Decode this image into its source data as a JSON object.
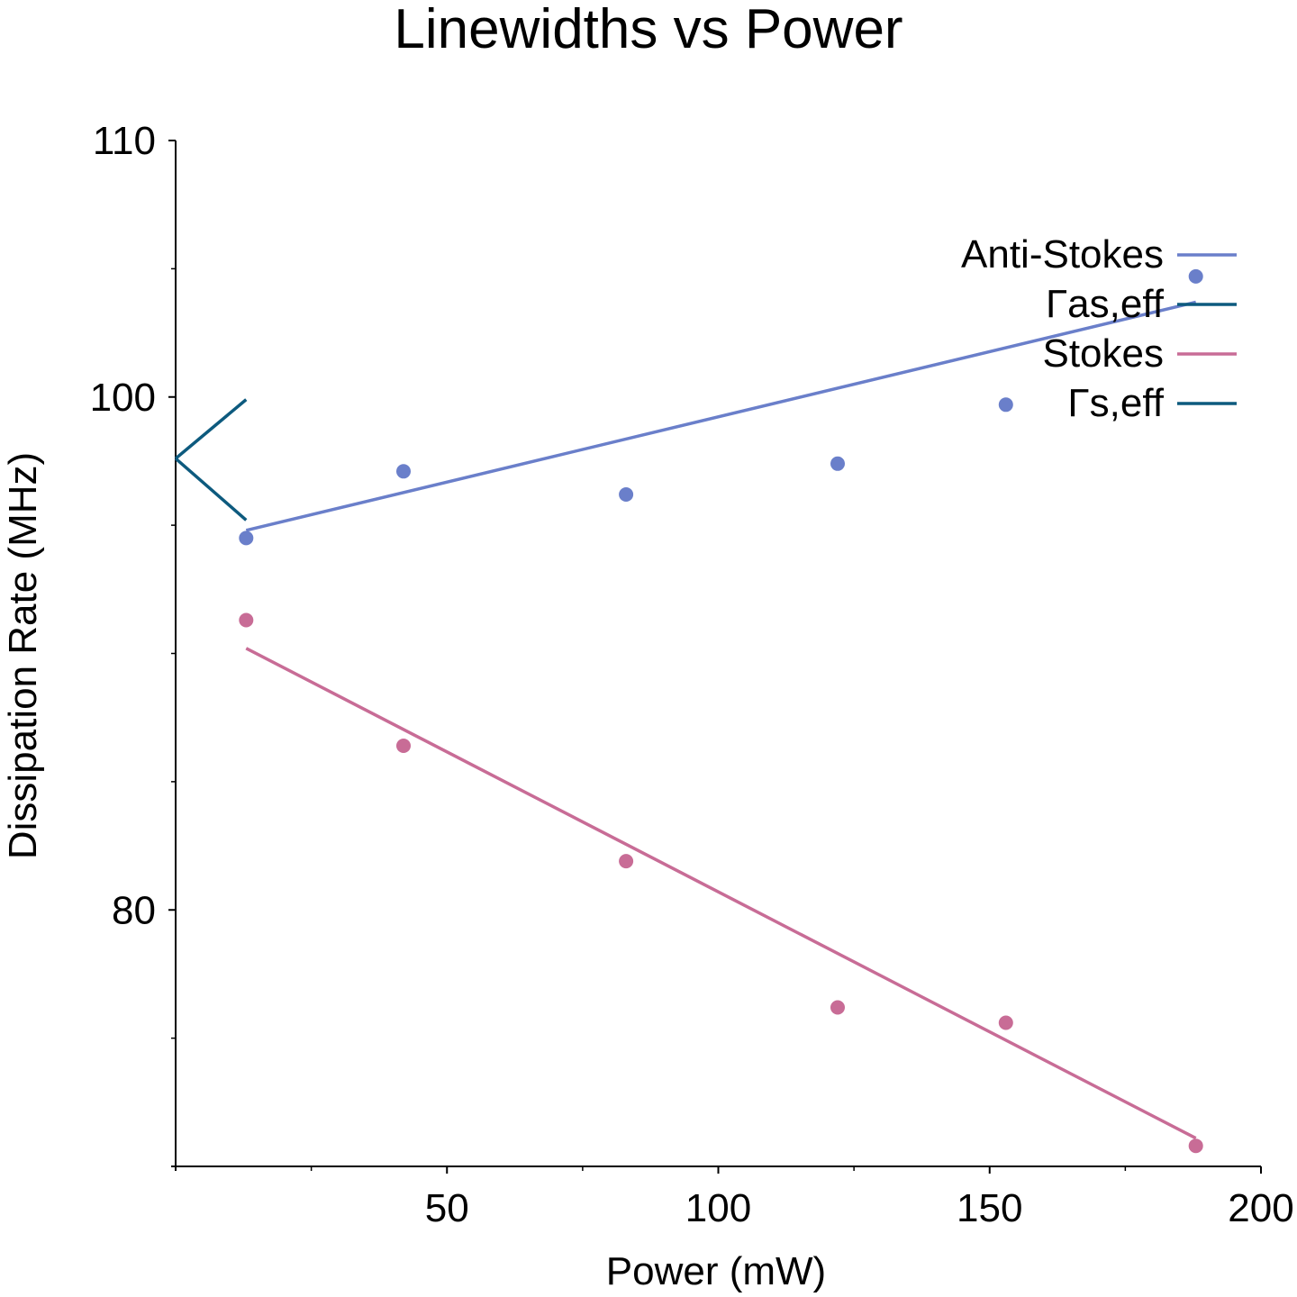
{
  "chart_data": {
    "type": "scatter",
    "title": "Linewidths vs Power",
    "xlabel": "Power (mW)",
    "ylabel": "Dissipation Rate (MHz)",
    "xlim": [
      0,
      200
    ],
    "ylim": [
      70,
      110
    ],
    "x_ticks": [
      50,
      100,
      150,
      200
    ],
    "x_tick_labels": [
      "50",
      "100",
      "150",
      "200"
    ],
    "y_ticks": [
      80,
      100,
      110
    ],
    "y_tick_labels": [
      "80",
      "100",
      "110"
    ],
    "y_minor_ticks": [
      75,
      85,
      90,
      95,
      105
    ],
    "x_minor_ticks": [
      25,
      75,
      125,
      175
    ],
    "grid": false,
    "legend_position": "top-right",
    "legend": [
      {
        "label": "Anti-Stokes",
        "color": "#6a7fca"
      },
      {
        "label": "Γas,eff",
        "color": "#0d5a7e"
      },
      {
        "label": "Stokes",
        "color": "#c86c96"
      },
      {
        "label": "Γs,eff",
        "color": "#0d5a7e"
      }
    ],
    "series": [
      {
        "name": "Anti-Stokes",
        "kind": "points",
        "color": "#6a7fca",
        "x": [
          13,
          42,
          83,
          122,
          153,
          188
        ],
        "y": [
          94.5,
          97.1,
          96.2,
          97.4,
          99.7,
          104.7
        ]
      },
      {
        "name": "Anti-Stokes",
        "kind": "line",
        "color": "#6a7fca",
        "x": [
          13,
          188
        ],
        "y": [
          94.8,
          103.7
        ]
      },
      {
        "name": "Γas,eff",
        "kind": "line",
        "color": "#0d5a7e",
        "x": [
          0,
          13
        ],
        "y": [
          97.6,
          99.9
        ]
      },
      {
        "name": "Stokes",
        "kind": "points",
        "color": "#c86c96",
        "x": [
          13,
          42,
          83,
          122,
          153,
          188
        ],
        "y": [
          91.3,
          86.4,
          81.9,
          76.2,
          75.6,
          70.8
        ]
      },
      {
        "name": "Stokes",
        "kind": "line",
        "color": "#c86c96",
        "x": [
          13,
          188
        ],
        "y": [
          90.2,
          71.1
        ]
      },
      {
        "name": "Γs,eff",
        "kind": "line",
        "color": "#0d5a7e",
        "x": [
          0,
          13
        ],
        "y": [
          97.6,
          95.2
        ]
      }
    ]
  }
}
